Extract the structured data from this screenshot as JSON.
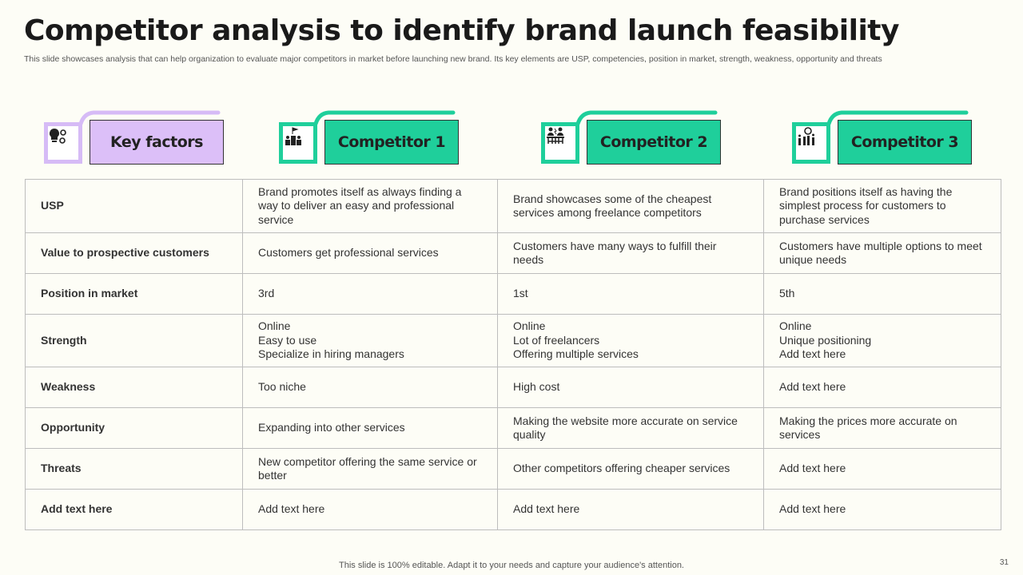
{
  "title": "Competitor analysis to identify brand launch feasibility",
  "subtitle": "This slide showcases analysis that can help organization to evaluate major competitors in market before launching new brand. Its key elements are USP, competencies, position in market, strength, weakness, opportunity and threats",
  "colors": {
    "purple": "#dcbff8",
    "purple_border": "#d6bbf6",
    "green": "#1fcf9b",
    "background": "#fdfdf6"
  },
  "headers": [
    {
      "label": "Key factors",
      "icon": "lightbulb-gears-icon"
    },
    {
      "label": "Competitor 1",
      "icon": "podium-team-icon"
    },
    {
      "label": "Competitor 2",
      "icon": "meeting-presentation-icon"
    },
    {
      "label": "Competitor 3",
      "icon": "growth-people-chart-icon"
    }
  ],
  "rows": [
    {
      "factor": "USP",
      "c1": "Brand promotes itself as always finding a way to deliver an easy and professional service",
      "c2": "Brand showcases some of the cheapest services among freelance competitors",
      "c3": "Brand positions itself as having the simplest process for customers to purchase services"
    },
    {
      "factor": "Value to prospective customers",
      "c1": "Customers get professional services",
      "c2": "Customers have many ways to fulfill their needs",
      "c3": "Customers have multiple options to meet unique needs"
    },
    {
      "factor": "Position in market",
      "c1": "3rd",
      "c2": "1st",
      "c3": "5th"
    },
    {
      "factor": "Strength",
      "c1": "Online\nEasy to use\nSpecialize in hiring managers",
      "c2": "Online\nLot of freelancers\nOffering multiple services",
      "c3": "Online\nUnique positioning\nAdd text here"
    },
    {
      "factor": "Weakness",
      "c1": "Too niche",
      "c2": "High cost",
      "c3": "Add text here"
    },
    {
      "factor": "Opportunity",
      "c1": "Expanding into other services",
      "c2": "Making the website more accurate on service quality",
      "c3": "Making the prices more accurate on services"
    },
    {
      "factor": "Threats",
      "c1": "New competitor offering the same service or better",
      "c2": "Other competitors offering cheaper services",
      "c3": "Add text here"
    },
    {
      "factor": "Add text here",
      "c1": "Add text here",
      "c2": "Add text here",
      "c3": "Add text here"
    }
  ],
  "footer": "This slide is 100% editable. Adapt it to your needs and capture your audience's attention.",
  "page_number": "31"
}
